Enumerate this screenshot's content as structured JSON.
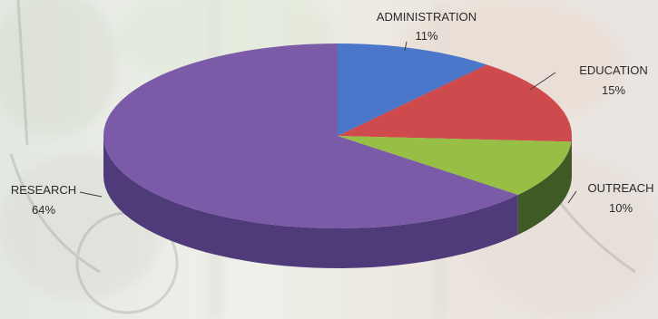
{
  "chart_data": {
    "type": "pie",
    "categories": [
      "ADMINISTRATION",
      "EDUCATION",
      "OUTREACH",
      "RESEARCH"
    ],
    "values": [
      11,
      15,
      10,
      64
    ],
    "value_labels": [
      "11%",
      "15%",
      "10%",
      "64%"
    ],
    "colors": [
      "#4a77c9",
      "#cf4a4c",
      "#98bf45",
      "#7b5aa8"
    ],
    "side_colors": [
      "#2f4f8f",
      "#8e2f31",
      "#3e5a25",
      "#4f3a7a"
    ],
    "title": "",
    "legend": "none"
  }
}
